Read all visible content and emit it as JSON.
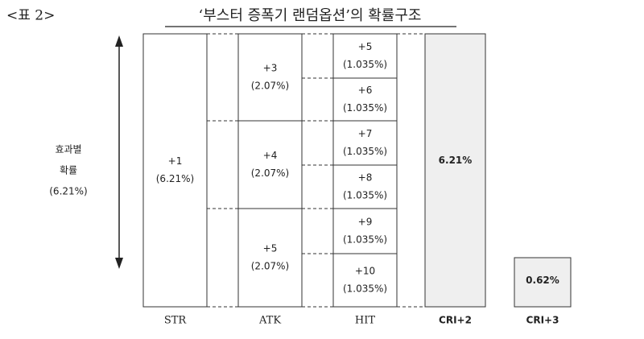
{
  "caption": "<표 2>",
  "title": "‘부스터 증폭기 랜덤옵션’의 확률구조",
  "side_label": [
    "효과별",
    "확률",
    "(6.21%)"
  ],
  "columns": [
    {
      "label": "STR",
      "cells": [
        {
          "value": "+1",
          "prob": "(6.21%)"
        }
      ]
    },
    {
      "label": "ATK",
      "cells": [
        {
          "value": "+3",
          "prob": "(2.07%)"
        },
        {
          "value": "+4",
          "prob": "(2.07%)"
        },
        {
          "value": "+5",
          "prob": "(2.07%)"
        }
      ]
    },
    {
      "label": "HIT",
      "cells": [
        {
          "value": "+5",
          "prob": "(1.035%)"
        },
        {
          "value": "+6",
          "prob": "(1.035%)"
        },
        {
          "value": "+7",
          "prob": "(1.035%)"
        },
        {
          "value": "+8",
          "prob": "(1.035%)"
        },
        {
          "value": "+9",
          "prob": "(1.035%)"
        },
        {
          "value": "+10",
          "prob": "(1.035%)"
        }
      ]
    },
    {
      "label": "CRI+2",
      "cells": [
        {
          "prob": "6.21%"
        }
      ]
    },
    {
      "label": "CRI+3",
      "cells": [
        {
          "prob": "0.62%"
        }
      ]
    }
  ]
}
